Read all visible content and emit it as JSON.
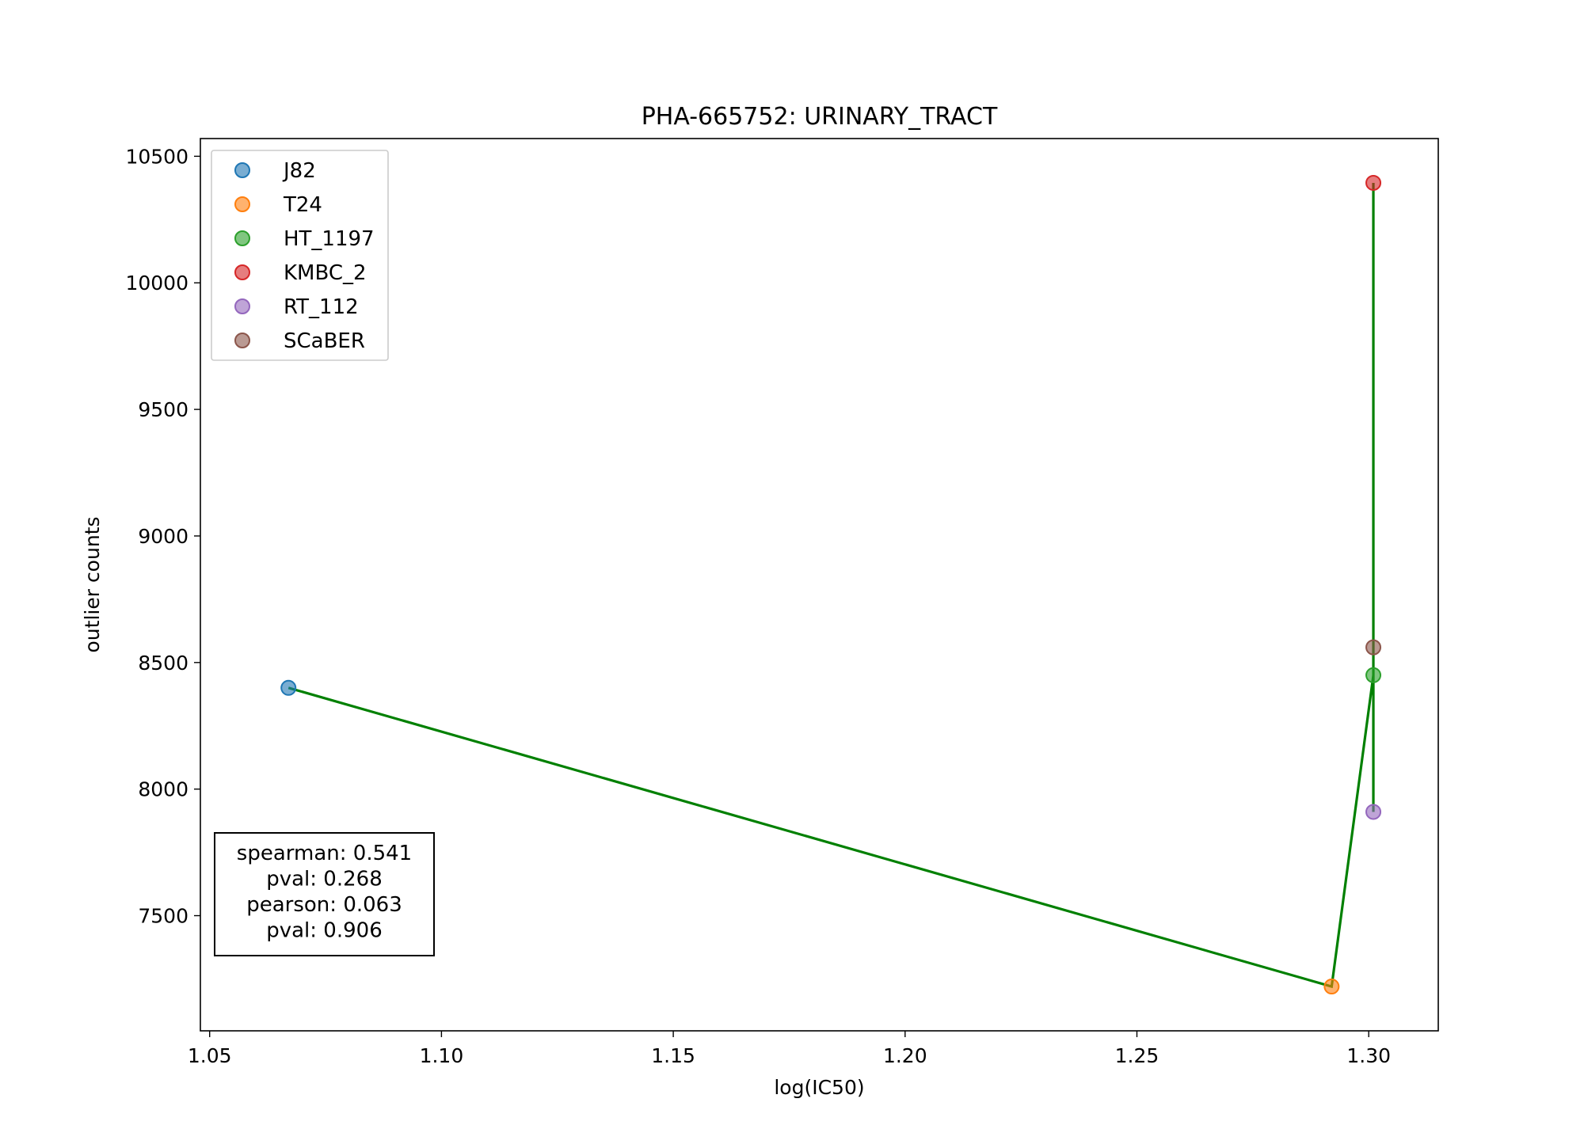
{
  "chart_data": {
    "type": "scatter",
    "title": "PHA-665752: URINARY_TRACT",
    "xlabel": "log(IC50)",
    "ylabel": "outlier counts",
    "xlim": [
      1.048,
      1.315
    ],
    "ylim": [
      7045,
      10570
    ],
    "x_ticks": [
      1.05,
      1.1,
      1.15,
      1.2,
      1.25,
      1.3
    ],
    "x_tick_labels": [
      "1.05",
      "1.10",
      "1.15",
      "1.20",
      "1.25",
      "1.30"
    ],
    "y_ticks": [
      7500,
      8000,
      8500,
      9000,
      9500,
      10000,
      10500
    ],
    "y_tick_labels": [
      "7500",
      "8000",
      "8500",
      "9000",
      "9500",
      "10000",
      "10500"
    ],
    "legend_position": "upper-left",
    "series": [
      {
        "name": "J82",
        "x": 1.067,
        "y": 8400,
        "color": "#1f77b4"
      },
      {
        "name": "T24",
        "x": 1.292,
        "y": 7220,
        "color": "#ff7f0e"
      },
      {
        "name": "HT_1197",
        "x": 1.301,
        "y": 8450,
        "color": "#2ca02c"
      },
      {
        "name": "KMBC_2",
        "x": 1.301,
        "y": 10395,
        "color": "#d62728"
      },
      {
        "name": "RT_112",
        "x": 1.301,
        "y": 7910,
        "color": "#9467bd"
      },
      {
        "name": "SCaBER",
        "x": 1.301,
        "y": 8560,
        "color": "#8c564b"
      }
    ],
    "connecting_line": {
      "color": "#008000",
      "order": [
        "J82",
        "T24",
        "HT_1197",
        "KMBC_2",
        "RT_112"
      ]
    },
    "stats_box": {
      "lines": [
        "spearman: 0.541",
        "pval: 0.268",
        "pearson: 0.063",
        "pval: 0.906"
      ],
      "position": "lower-left"
    }
  }
}
